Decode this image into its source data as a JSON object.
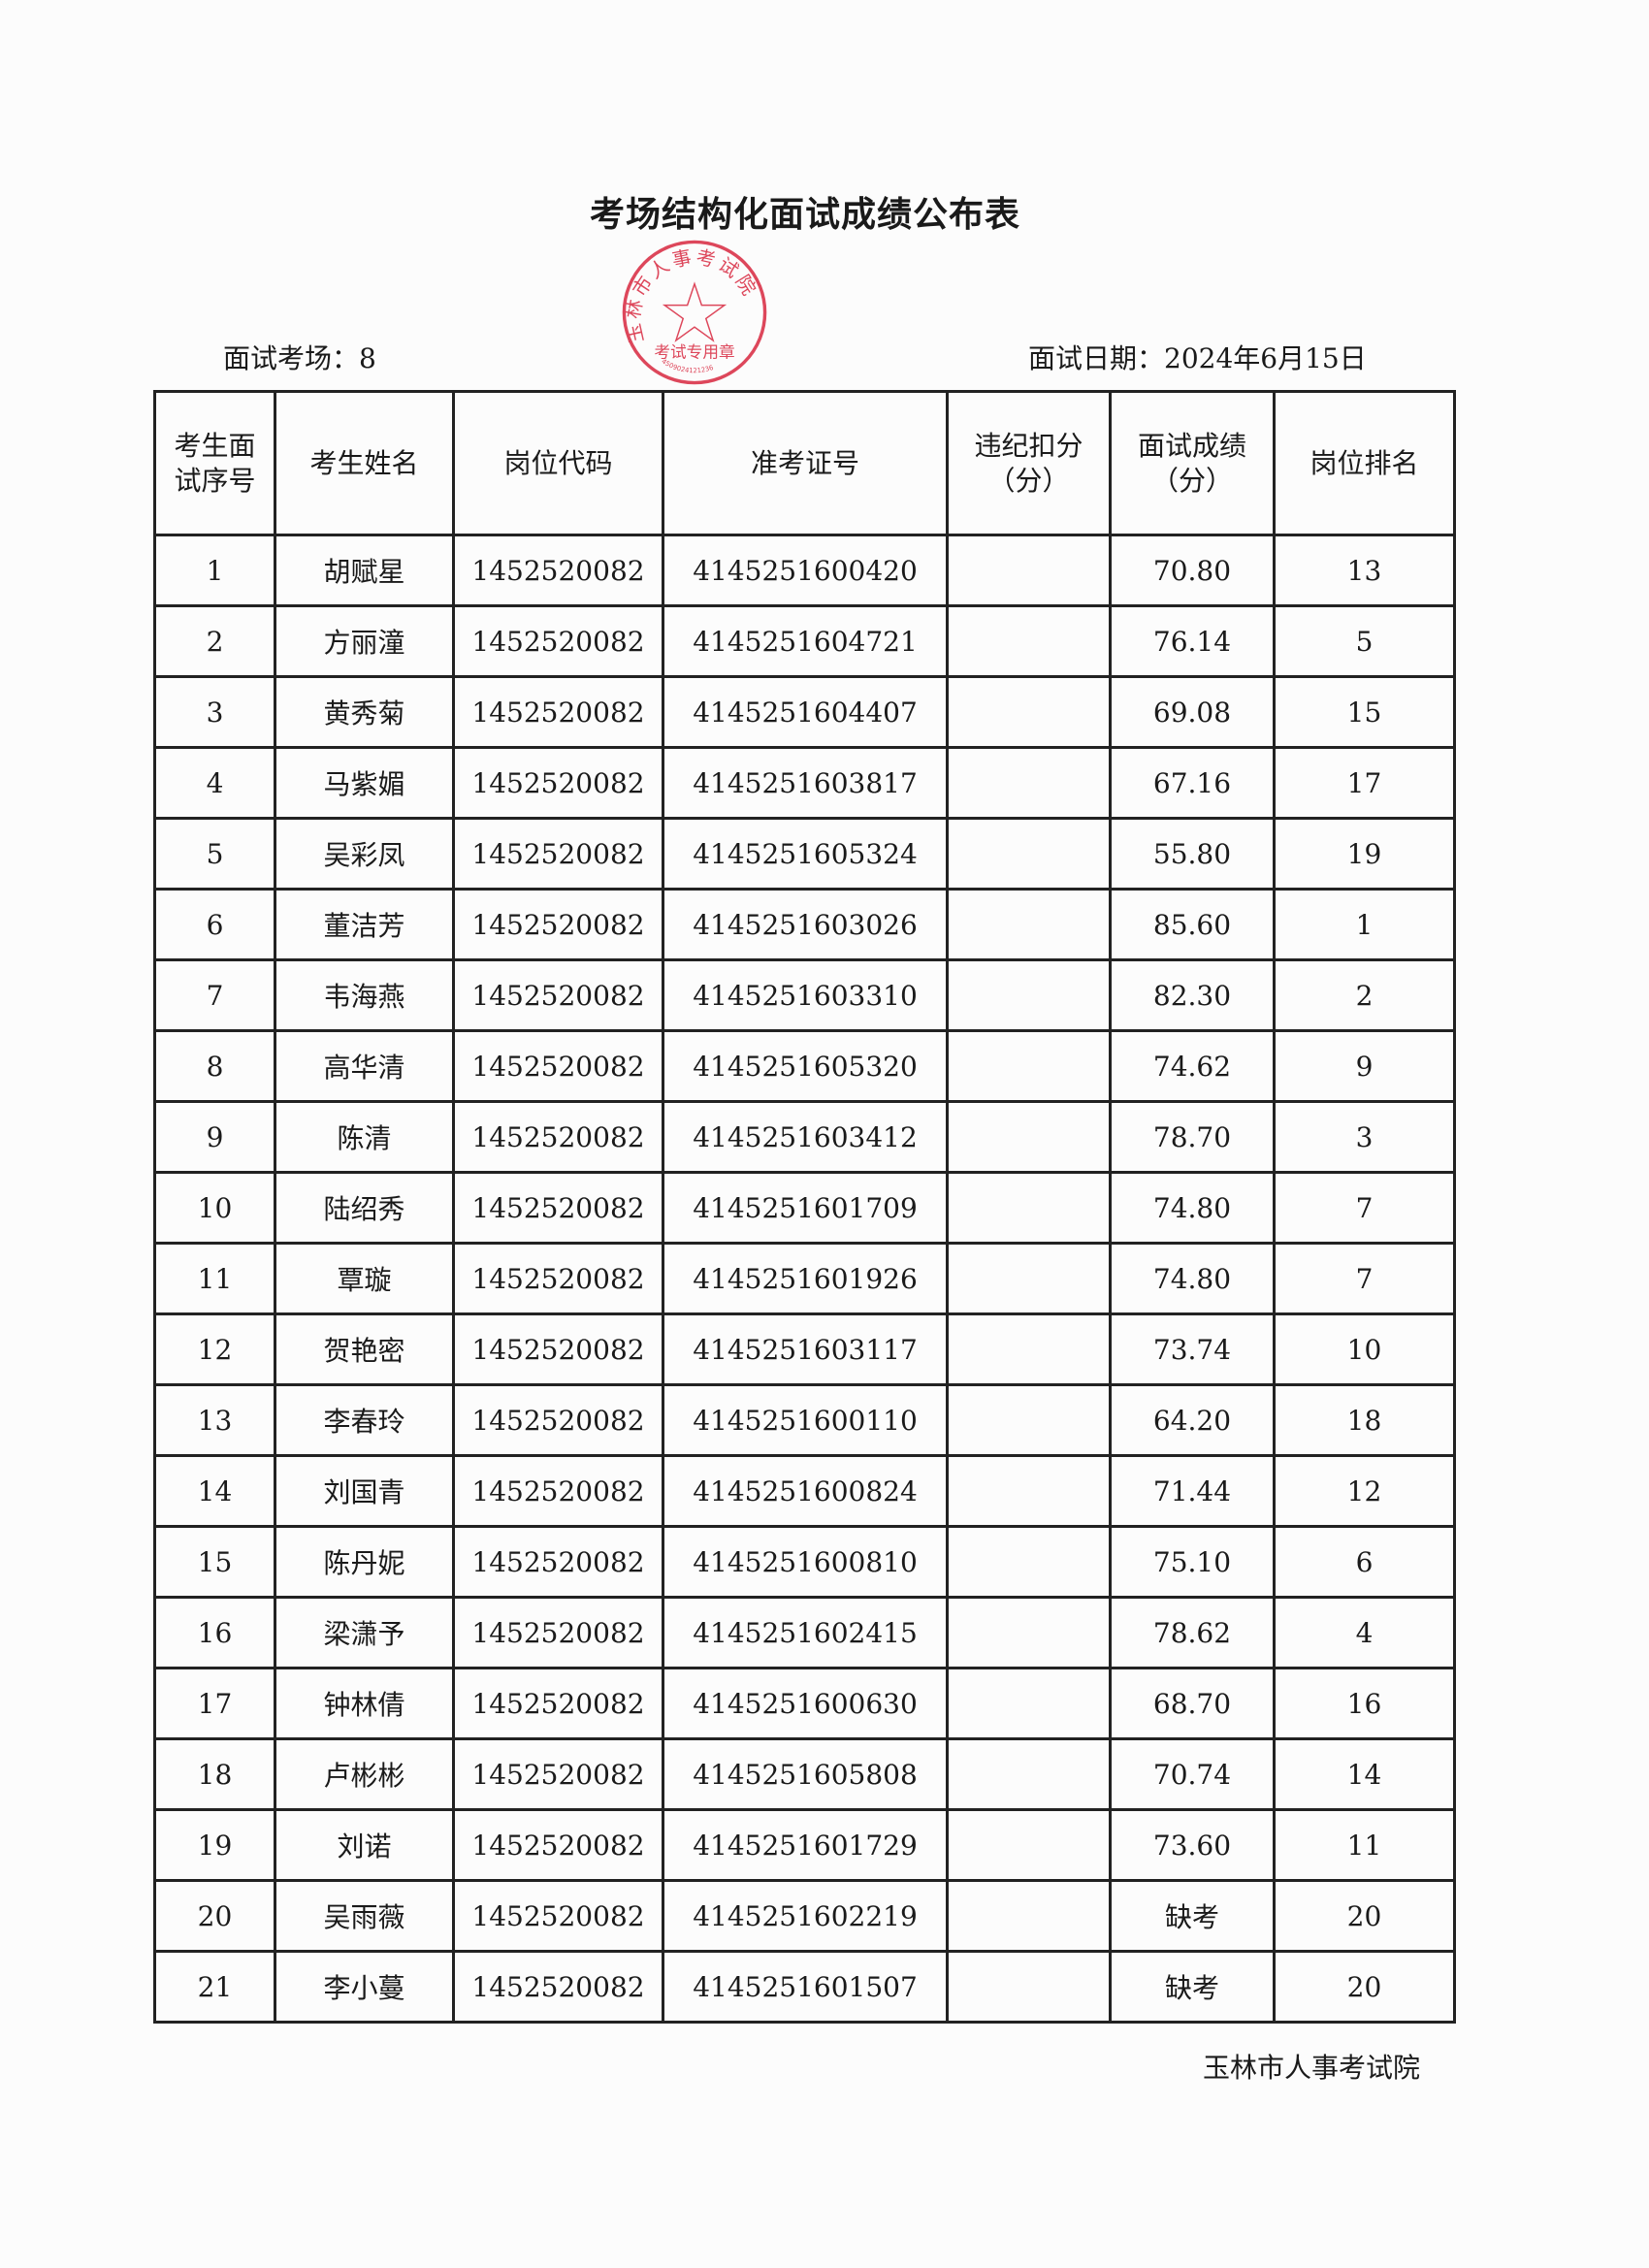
{
  "title": "考场结构化面试成绩公布表",
  "exam_room_label": "面试考场：8",
  "exam_date_label": "面试日期：2024年6月15日",
  "headers": [
    "考生面试序号",
    "考生姓名",
    "岗位代码",
    "准考证号",
    "违纪扣分（分）",
    "面试成绩（分）",
    "岗位排名"
  ],
  "rows": [
    [
      "1",
      "胡赋星",
      "1452520082",
      "4145251600420",
      "",
      "70.80",
      "13"
    ],
    [
      "2",
      "方丽潼",
      "1452520082",
      "4145251604721",
      "",
      "76.14",
      "5"
    ],
    [
      "3",
      "黄秀菊",
      "1452520082",
      "4145251604407",
      "",
      "69.08",
      "15"
    ],
    [
      "4",
      "马紫媚",
      "1452520082",
      "4145251603817",
      "",
      "67.16",
      "17"
    ],
    [
      "5",
      "吴彩凤",
      "1452520082",
      "4145251605324",
      "",
      "55.80",
      "19"
    ],
    [
      "6",
      "董洁芳",
      "1452520082",
      "4145251603026",
      "",
      "85.60",
      "1"
    ],
    [
      "7",
      "韦海燕",
      "1452520082",
      "4145251603310",
      "",
      "82.30",
      "2"
    ],
    [
      "8",
      "高华清",
      "1452520082",
      "4145251605320",
      "",
      "74.62",
      "9"
    ],
    [
      "9",
      "陈清",
      "1452520082",
      "4145251603412",
      "",
      "78.70",
      "3"
    ],
    [
      "10",
      "陆绍秀",
      "1452520082",
      "4145251601709",
      "",
      "74.80",
      "7"
    ],
    [
      "11",
      "覃璇",
      "1452520082",
      "4145251601926",
      "",
      "74.80",
      "7"
    ],
    [
      "12",
      "贺艳密",
      "1452520082",
      "4145251603117",
      "",
      "73.74",
      "10"
    ],
    [
      "13",
      "李春玲",
      "1452520082",
      "4145251600110",
      "",
      "64.20",
      "18"
    ],
    [
      "14",
      "刘国青",
      "1452520082",
      "4145251600824",
      "",
      "71.44",
      "12"
    ],
    [
      "15",
      "陈丹妮",
      "1452520082",
      "4145251600810",
      "",
      "75.10",
      "6"
    ],
    [
      "16",
      "梁潇予",
      "1452520082",
      "4145251602415",
      "",
      "78.62",
      "4"
    ],
    [
      "17",
      "钟林倩",
      "1452520082",
      "4145251600630",
      "",
      "68.70",
      "16"
    ],
    [
      "18",
      "卢彬彬",
      "1452520082",
      "4145251605808",
      "",
      "70.74",
      "14"
    ],
    [
      "19",
      "刘诺",
      "1452520082",
      "4145251601729",
      "",
      "73.60",
      "11"
    ],
    [
      "20",
      "吴雨薇",
      "1452520082",
      "4145251602219",
      "",
      "缺考",
      "20"
    ],
    [
      "21",
      "李小蔓",
      "1452520082",
      "4145251601507",
      "",
      "缺考",
      "20"
    ]
  ],
  "footer": "玉林市人事考试院",
  "stamp": {
    "ring_text": "玉林市人事考试院",
    "center_text": "考试专用章",
    "number": "4509024121236",
    "color": "#d8283f"
  }
}
